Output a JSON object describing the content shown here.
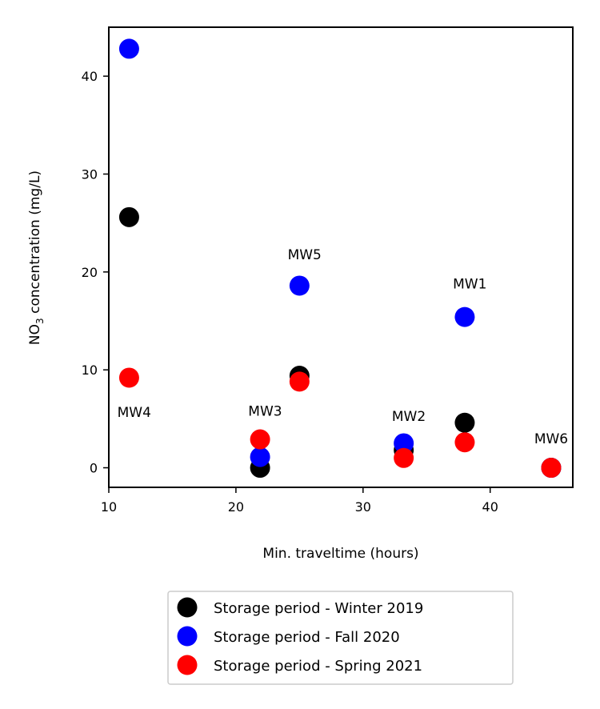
{
  "chart_data": {
    "type": "scatter",
    "xlabel": "Min. traveltime (hours)",
    "ylabel_main": "NO",
    "ylabel_sub": "3",
    "ylabel_rest": " concentration (mg/L)",
    "xlim": [
      10,
      46.5
    ],
    "ylim": [
      -2,
      45
    ],
    "x_ticks": [
      10,
      20,
      30,
      40
    ],
    "y_ticks": [
      0,
      10,
      20,
      30,
      40
    ],
    "grid": false,
    "legend_position": "bottom-center",
    "series": [
      {
        "name": "Storage period - Winter 2019",
        "color": "#000000",
        "points": [
          {
            "x": 11.6,
            "y": 25.6
          },
          {
            "x": 21.9,
            "y": 0.0
          },
          {
            "x": 25.0,
            "y": 9.4
          },
          {
            "x": 33.2,
            "y": 1.8
          },
          {
            "x": 38.0,
            "y": 4.6
          },
          {
            "x": 44.8,
            "y": 0.0
          }
        ]
      },
      {
        "name": "Storage period - Fall 2020",
        "color": "#0000ff",
        "points": [
          {
            "x": 11.6,
            "y": 42.8
          },
          {
            "x": 21.9,
            "y": 1.1
          },
          {
            "x": 25.0,
            "y": 18.6
          },
          {
            "x": 33.2,
            "y": 2.5
          },
          {
            "x": 38.0,
            "y": 15.4
          },
          {
            "x": 44.8,
            "y": 0.0
          }
        ]
      },
      {
        "name": "Storage period - Spring 2021",
        "color": "#ff0000",
        "points": [
          {
            "x": 11.6,
            "y": 9.2
          },
          {
            "x": 21.9,
            "y": 2.9
          },
          {
            "x": 25.0,
            "y": 8.8
          },
          {
            "x": 33.2,
            "y": 1.0
          },
          {
            "x": 38.0,
            "y": 2.6
          },
          {
            "x": 44.8,
            "y": 0.0
          }
        ]
      }
    ],
    "annotations": [
      {
        "text": "MW4",
        "x": 12.0,
        "y": 5.2
      },
      {
        "text": "MW3",
        "x": 22.3,
        "y": 5.3
      },
      {
        "text": "MW5",
        "x": 25.4,
        "y": 21.3
      },
      {
        "text": "MW2",
        "x": 33.6,
        "y": 4.8
      },
      {
        "text": "MW1",
        "x": 38.4,
        "y": 18.3
      },
      {
        "text": "MW6",
        "x": 44.8,
        "y": 2.5
      }
    ]
  }
}
